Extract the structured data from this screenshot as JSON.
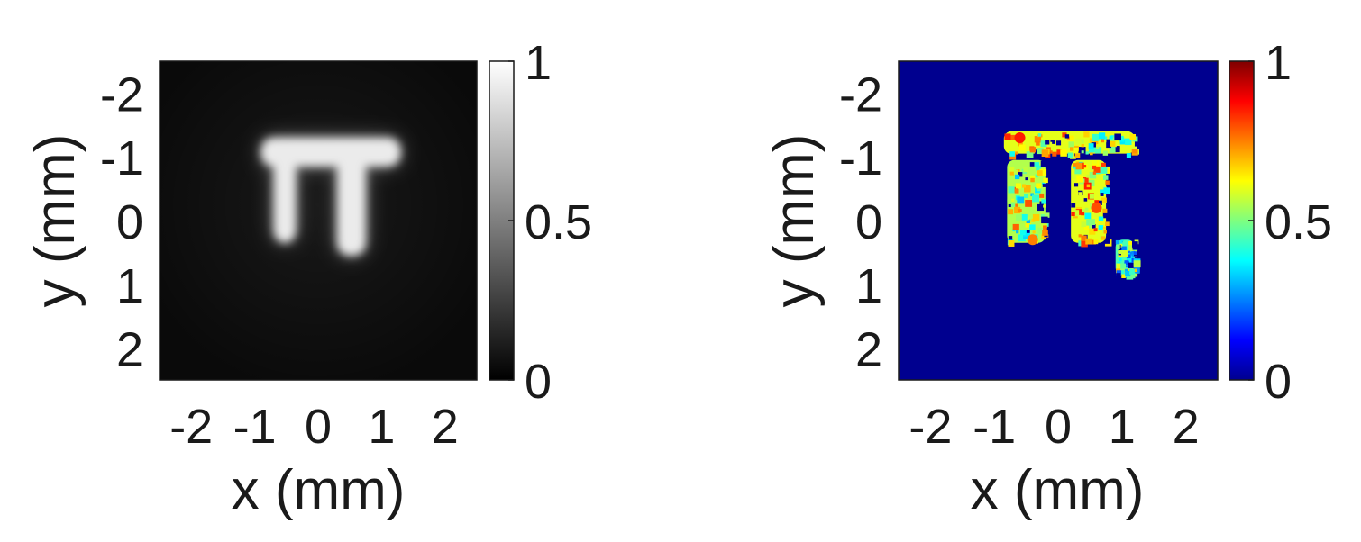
{
  "chart_data": [
    {
      "type": "heatmap",
      "colormap": "gray",
      "xlabel": "x (mm)",
      "ylabel": "y (mm)",
      "xlim": [
        -2.5,
        2.5
      ],
      "ylim": [
        -2.5,
        2.5
      ],
      "y_axis_reversed": true,
      "x_ticks": [
        -2,
        -1,
        0,
        1,
        2
      ],
      "y_ticks": [
        -2,
        -1,
        0,
        1,
        2
      ],
      "x_tick_labels": [
        "-2",
        "-1",
        "0",
        "1",
        "2"
      ],
      "y_tick_labels": [
        "-2",
        "-1",
        "0",
        "1",
        "2"
      ],
      "colorbar": {
        "min": 0,
        "max": 1,
        "ticks": [
          0,
          0.5,
          1
        ],
        "tick_labels": [
          "0",
          "0.5",
          "1"
        ]
      },
      "background_value": 0.04,
      "feature": "bright π-shaped region",
      "feature_regions": [
        {
          "part": "top-bar",
          "x": [
            -0.9,
            1.3
          ],
          "y": [
            -1.3,
            -0.85
          ],
          "value": 0.92
        },
        {
          "part": "left-leg",
          "x": [
            -0.7,
            -0.35
          ],
          "y": [
            -1.0,
            0.35
          ],
          "value": 0.92
        },
        {
          "part": "right-leg",
          "x": [
            0.3,
            0.75
          ],
          "y": [
            -1.0,
            0.55
          ],
          "value": 0.92
        }
      ]
    },
    {
      "type": "heatmap",
      "colormap": "jet",
      "xlabel": "x (mm)",
      "ylabel": "y (mm)",
      "xlim": [
        -2.5,
        2.5
      ],
      "ylim": [
        -2.5,
        2.5
      ],
      "y_axis_reversed": true,
      "x_ticks": [
        -2,
        -1,
        0,
        1,
        2
      ],
      "y_ticks": [
        -2,
        -1,
        0,
        1,
        2
      ],
      "x_tick_labels": [
        "-2",
        "-1",
        "0",
        "1",
        "2"
      ],
      "y_tick_labels": [
        "-2",
        "-1",
        "0",
        "1",
        "2"
      ],
      "colorbar": {
        "min": 0,
        "max": 1,
        "ticks": [
          0,
          0.5,
          1
        ],
        "tick_labels": [
          "0",
          "0.5",
          "1"
        ]
      },
      "background_value": 0.0,
      "feature": "noisy π-shaped region",
      "feature_regions": [
        {
          "part": "top-bar",
          "x": [
            -0.85,
            1.2
          ],
          "y": [
            -1.4,
            -1.05
          ],
          "value": 0.6
        },
        {
          "part": "left-leg",
          "x": [
            -0.8,
            -0.2
          ],
          "y": [
            -0.95,
            0.35
          ],
          "value": 0.55
        },
        {
          "part": "right-leg",
          "x": [
            0.2,
            0.75
          ],
          "y": [
            -0.95,
            0.35
          ],
          "value": 0.6
        },
        {
          "part": "speckle",
          "x": [
            0.9,
            1.2
          ],
          "y": [
            0.3,
            0.85
          ],
          "value": 0.45
        }
      ],
      "hotspots": [
        {
          "x": -0.6,
          "y": -1.3,
          "value": 0.85
        },
        {
          "x": 0.6,
          "y": -0.2,
          "value": 0.8
        },
        {
          "x": -0.4,
          "y": 0.3,
          "value": 0.75
        }
      ]
    }
  ]
}
